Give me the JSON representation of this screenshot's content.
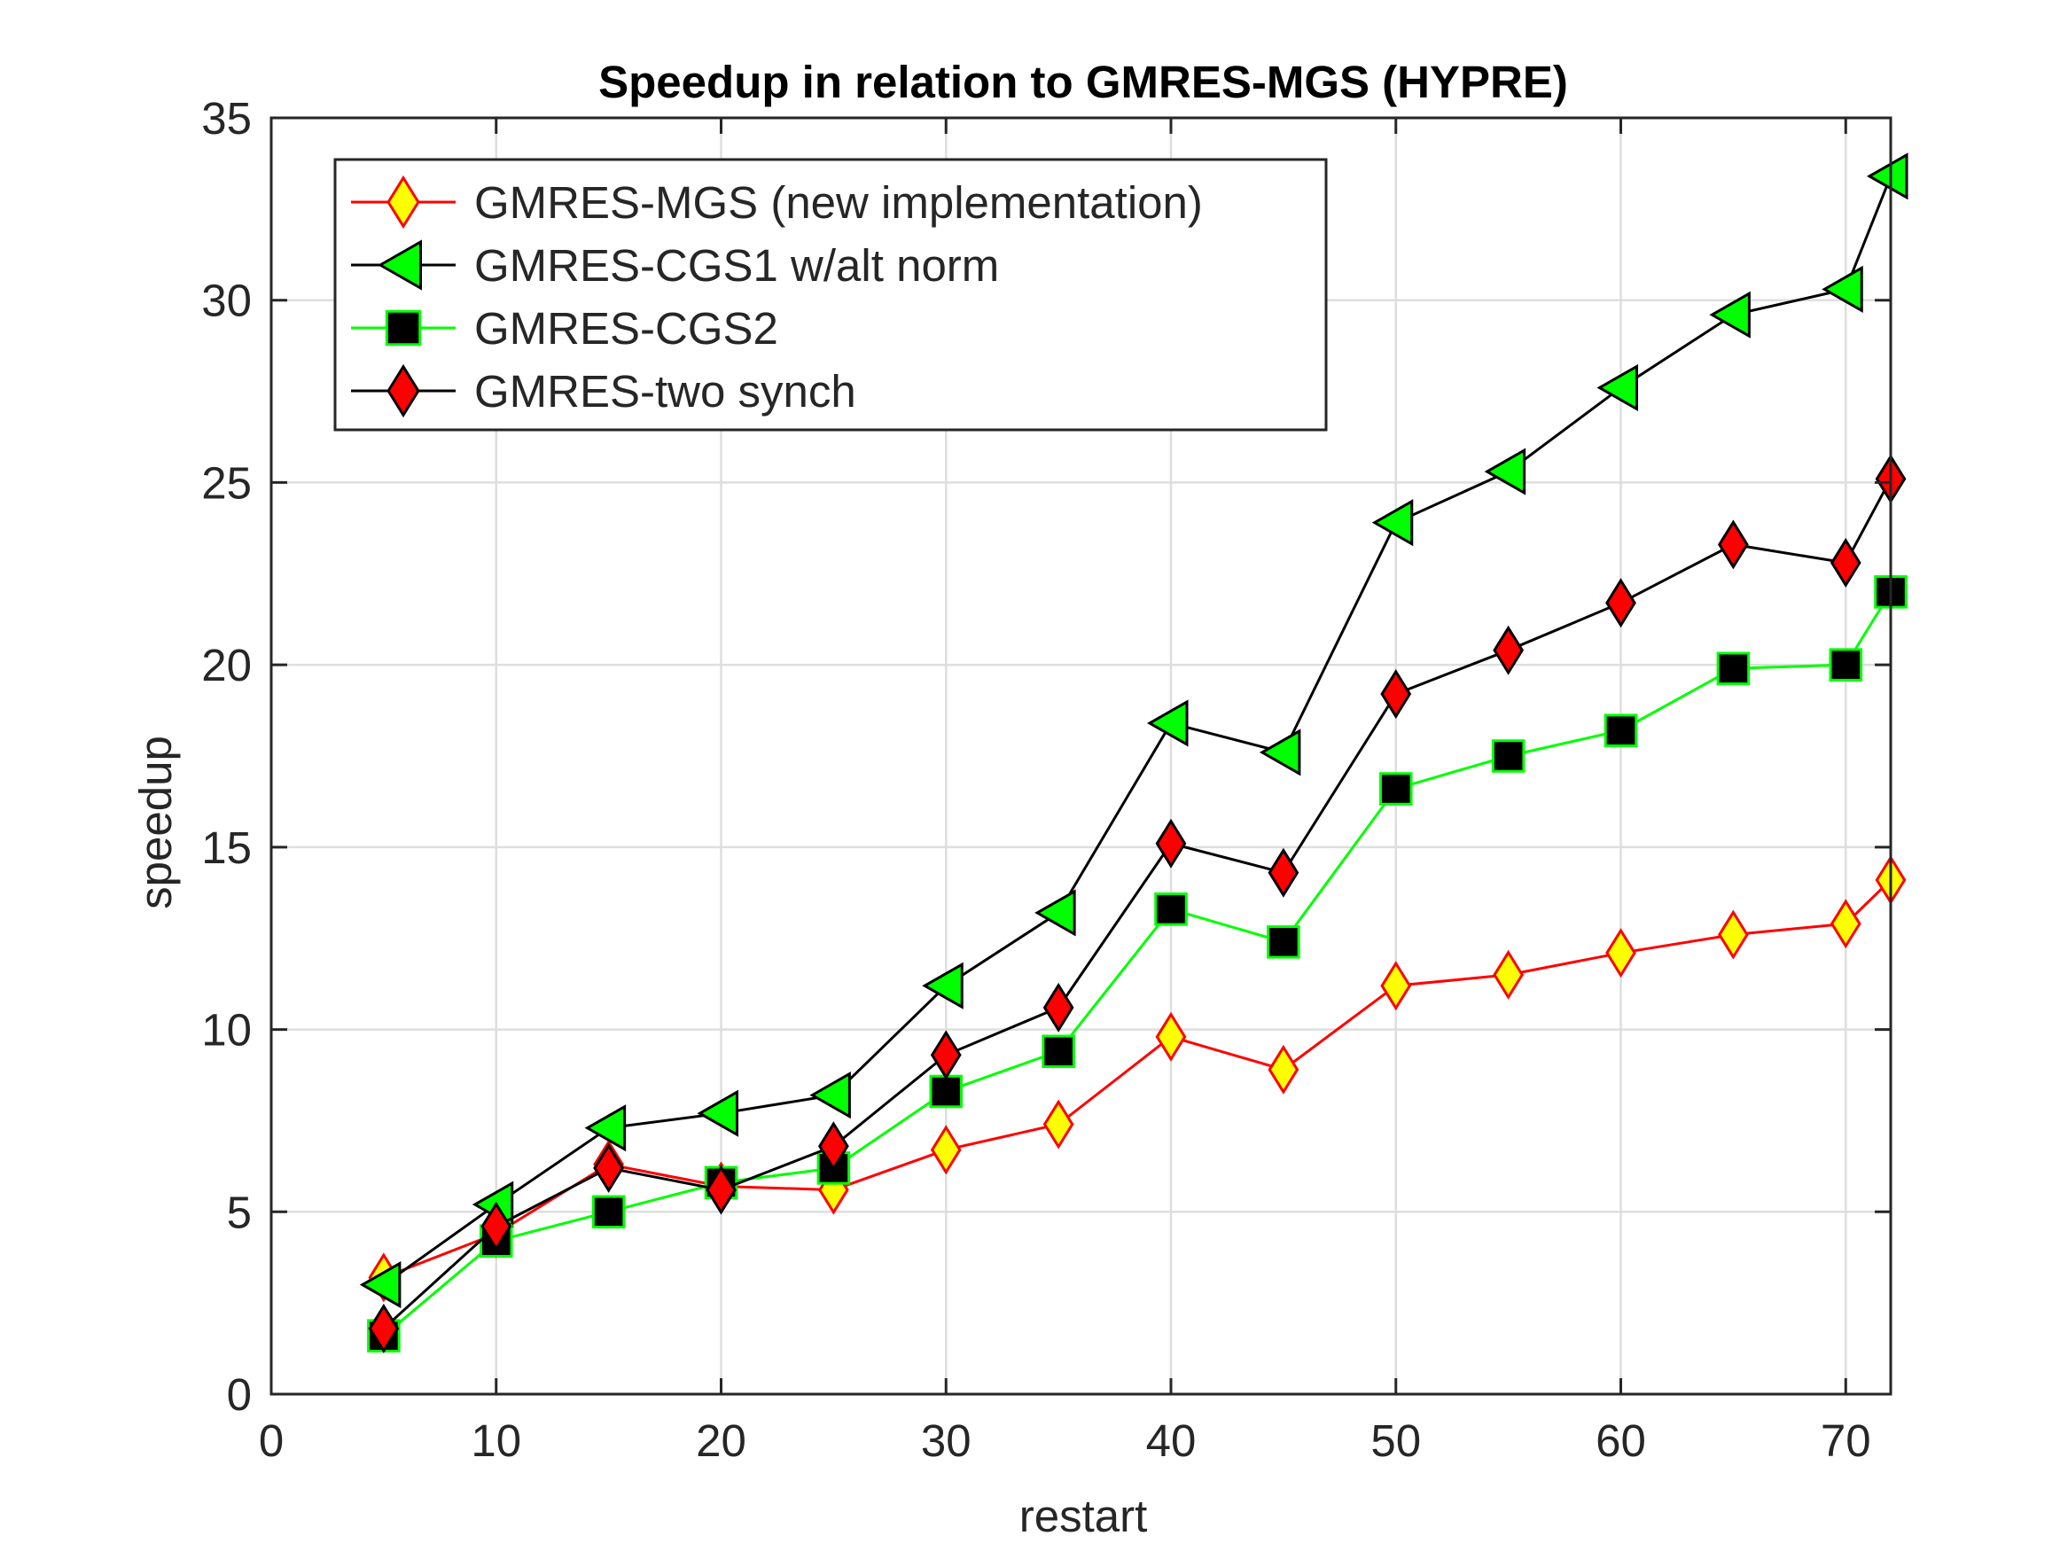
{
  "chart_data": {
    "type": "line",
    "title": "Speedup in relation to GMRES-MGS (HYPRE)",
    "xlabel": "restart",
    "ylabel": "speedup",
    "xlim": [
      0,
      72
    ],
    "ylim": [
      0,
      35
    ],
    "xticks": [
      0,
      10,
      20,
      30,
      40,
      50,
      60,
      70
    ],
    "yticks": [
      0,
      5,
      10,
      15,
      20,
      25,
      30,
      35
    ],
    "grid": true,
    "legend_position": "top-left",
    "x": [
      5,
      10,
      15,
      20,
      25,
      30,
      35,
      40,
      45,
      50,
      55,
      60,
      65,
      70,
      72
    ],
    "series": [
      {
        "name": "GMRES-MGS (new implementation)",
        "line_color": "#ff0000",
        "marker": "diamond",
        "marker_fill": "#ffff00",
        "marker_edge": "#ff0000",
        "values": [
          3.2,
          4.4,
          6.3,
          5.7,
          5.6,
          6.7,
          7.4,
          9.8,
          8.9,
          11.2,
          11.5,
          12.1,
          12.6,
          12.9,
          14.1
        ]
      },
      {
        "name": "GMRES-CGS1 w/alt norm",
        "line_color": "#000000",
        "marker": "triangle-left",
        "marker_fill": "#00ff00",
        "marker_edge": "#000000",
        "values": [
          3.0,
          5.2,
          7.3,
          7.7,
          8.2,
          11.2,
          13.2,
          18.4,
          17.6,
          23.9,
          25.3,
          27.6,
          29.6,
          30.3,
          33.4
        ]
      },
      {
        "name": "GMRES-CGS2",
        "line_color": "#00ff00",
        "marker": "square",
        "marker_fill": "#000000",
        "marker_edge": "#00ff00",
        "values": [
          1.6,
          4.2,
          5.0,
          5.8,
          6.2,
          8.3,
          9.4,
          13.3,
          12.4,
          16.6,
          17.5,
          18.2,
          19.9,
          20.0,
          22.0
        ]
      },
      {
        "name": "GMRES-two synch",
        "line_color": "#000000",
        "marker": "diamond",
        "marker_fill": "#ff0000",
        "marker_edge": "#000000",
        "values": [
          1.8,
          4.6,
          6.2,
          5.6,
          6.8,
          9.3,
          10.6,
          15.1,
          14.3,
          19.2,
          20.4,
          21.7,
          23.3,
          22.8,
          25.1
        ]
      }
    ]
  }
}
